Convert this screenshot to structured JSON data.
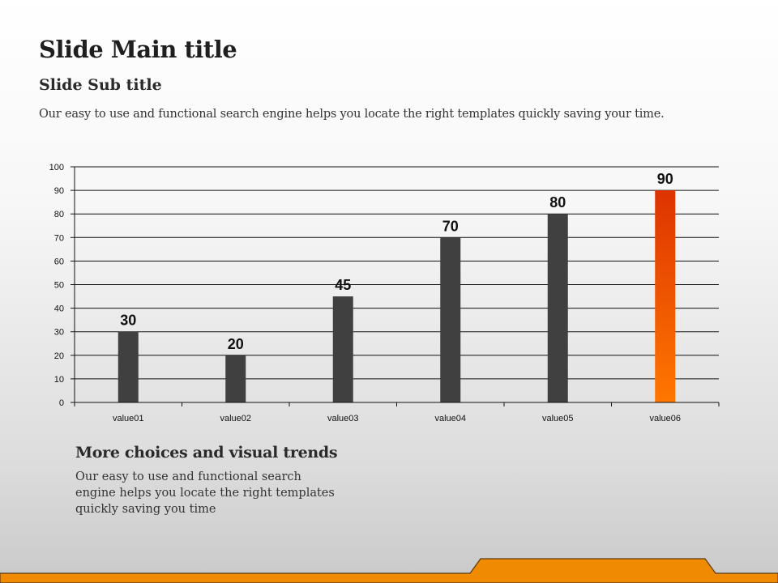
{
  "slide": {
    "title": "Slide Main title",
    "subtitle": "Slide Sub title",
    "description": "Our easy to use and functional search engine helps you locate the right templates quickly saving your time."
  },
  "section": {
    "title": "More choices and visual trends",
    "text": "Our easy to use and functional search engine helps you locate the right templates quickly saving you time"
  },
  "colors": {
    "bar": "#404040",
    "highlight_top": "#dd3300",
    "highlight_bottom": "#ff7700",
    "accent": "#f08a00"
  },
  "chart_data": {
    "type": "bar",
    "categories": [
      "value01",
      "value02",
      "value03",
      "value04",
      "value05",
      "value06"
    ],
    "values": [
      30,
      20,
      45,
      70,
      80,
      90
    ],
    "data_labels": [
      "30",
      "20",
      "45",
      "70",
      "80",
      "90"
    ],
    "highlight_index": 5,
    "ylim": [
      0,
      100
    ],
    "yticks": [
      0,
      10,
      20,
      30,
      40,
      50,
      60,
      70,
      80,
      90,
      100
    ],
    "grid": true,
    "legend": "none",
    "title": "",
    "xlabel": "",
    "ylabel": ""
  }
}
